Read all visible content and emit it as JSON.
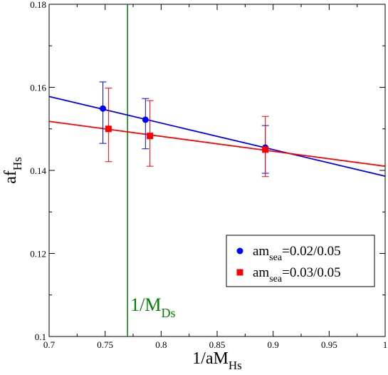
{
  "chart_data": {
    "type": "scatter",
    "title": "",
    "xlabel": {
      "main": "1/aM",
      "sub": "Hs"
    },
    "ylabel": {
      "main": "af",
      "sub": "Hs"
    },
    "xlim": [
      0.7,
      1.0
    ],
    "ylim": [
      0.1,
      0.18
    ],
    "xticks": [
      0.7,
      0.75,
      0.8,
      0.85,
      0.9,
      0.95,
      1.0
    ],
    "xtick_labels": [
      "0.7",
      "0.75",
      "0.8",
      "0.85",
      "0.9",
      "0.95",
      "1"
    ],
    "yticks": [
      0.1,
      0.12,
      0.14,
      0.16,
      0.18
    ],
    "ytick_labels": [
      "0.1",
      "0.12",
      "0.14",
      "0.16",
      "0.18"
    ],
    "grid": false,
    "legend_position": "lower-right",
    "series": [
      {
        "name": {
          "main": "am",
          "sub": "sea",
          "rest": "=0.02/0.05"
        },
        "color": "#0000ff",
        "marker": "circle",
        "points": [
          {
            "x": 0.748,
            "y": 0.1549,
            "err_lo": 0.1465,
            "err_hi": 0.1613
          },
          {
            "x": 0.786,
            "y": 0.1522,
            "err_lo": 0.1452,
            "err_hi": 0.1573
          },
          {
            "x": 0.893,
            "y": 0.1455,
            "err_lo": 0.1393,
            "err_hi": 0.1508
          }
        ],
        "fit": {
          "x": [
            0.7,
            1.0
          ],
          "y": [
            0.1578,
            0.1386
          ]
        }
      },
      {
        "name": {
          "main": "am",
          "sub": "sea",
          "rest": "=0.03/0.05"
        },
        "color": "#ff0000",
        "marker": "square",
        "points": [
          {
            "x": 0.753,
            "y": 0.15,
            "err_lo": 0.1421,
            "err_hi": 0.1598
          },
          {
            "x": 0.79,
            "y": 0.1483,
            "err_lo": 0.141,
            "err_hi": 0.1568
          },
          {
            "x": 0.893,
            "y": 0.145,
            "err_lo": 0.1385,
            "err_hi": 0.153
          }
        ],
        "fit": {
          "x": [
            0.7,
            1.0
          ],
          "y": [
            0.1518,
            0.141
          ]
        }
      }
    ],
    "reference_line": {
      "x": 0.77,
      "color": "#008000",
      "label": {
        "main": "1/M",
        "sub": "Ds"
      }
    }
  }
}
